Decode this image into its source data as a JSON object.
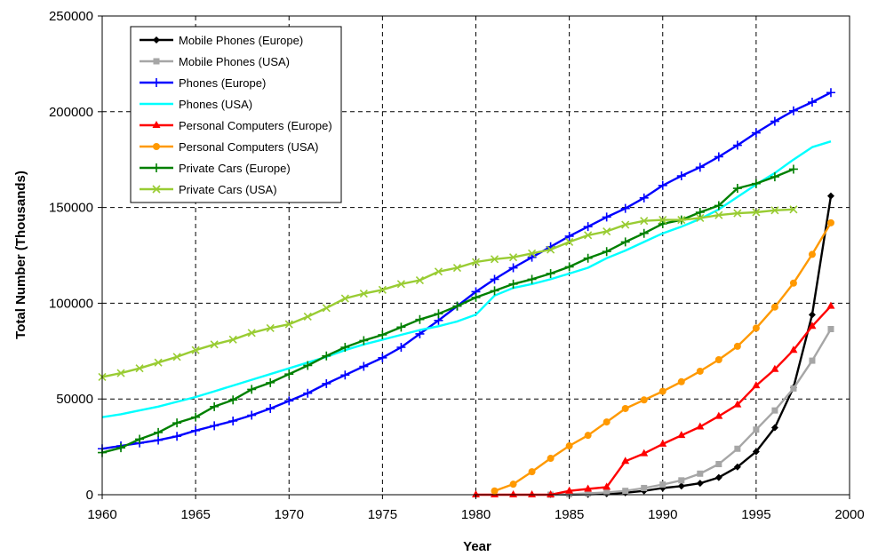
{
  "chart_data": {
    "type": "line",
    "title": "",
    "xlabel": "Year",
    "ylabel": "Total Number (Thousands)",
    "xlim": [
      1960,
      2000
    ],
    "ylim": [
      0,
      250000
    ],
    "x_ticks": [
      "1960",
      "1965",
      "1970",
      "1975",
      "1980",
      "1985",
      "1990",
      "1995",
      "2000"
    ],
    "y_ticks": [
      "0",
      "50000",
      "100000",
      "150000",
      "200000",
      "250000"
    ],
    "grid": true,
    "legend_position": "top-left",
    "series": [
      {
        "name": "Mobile Phones (Europe)",
        "color": "#000000",
        "marker": "diamond",
        "x": [
          1984,
          1985,
          1986,
          1987,
          1988,
          1989,
          1990,
          1991,
          1992,
          1993,
          1994,
          1995,
          1996,
          1997,
          1998,
          1999
        ],
        "y": [
          0,
          100,
          200,
          500,
          1000,
          2000,
          3500,
          4500,
          6000,
          9000,
          14500,
          22500,
          35000,
          56000,
          94000,
          156000
        ]
      },
      {
        "name": "Mobile Phones (USA)",
        "color": "#a6a6a6",
        "marker": "square",
        "x": [
          1984,
          1985,
          1986,
          1987,
          1988,
          1989,
          1990,
          1991,
          1992,
          1993,
          1994,
          1995,
          1996,
          1997,
          1998,
          1999
        ],
        "y": [
          0,
          300,
          700,
          1200,
          2000,
          3500,
          5300,
          7500,
          11000,
          16000,
          24000,
          34000,
          44000,
          55500,
          70000,
          86500
        ]
      },
      {
        "name": "Phones (Europe)",
        "color": "#0000ff",
        "marker": "plus",
        "x": [
          1960,
          1961,
          1962,
          1963,
          1964,
          1965,
          1966,
          1967,
          1968,
          1969,
          1970,
          1971,
          1972,
          1973,
          1974,
          1975,
          1976,
          1977,
          1978,
          1979,
          1980,
          1981,
          1982,
          1983,
          1984,
          1985,
          1986,
          1987,
          1988,
          1989,
          1990,
          1991,
          1992,
          1993,
          1994,
          1995,
          1996,
          1997,
          1998,
          1999
        ],
        "y": [
          24000,
          25500,
          27000,
          28500,
          30500,
          33500,
          36000,
          38500,
          41500,
          45000,
          49000,
          53000,
          58000,
          62500,
          67000,
          71500,
          77000,
          84000,
          91000,
          98500,
          106000,
          112500,
          118500,
          124000,
          129500,
          135000,
          140000,
          145000,
          149500,
          155000,
          161500,
          166500,
          171000,
          176500,
          182500,
          189000,
          195000,
          200500,
          205000,
          210000
        ]
      },
      {
        "name": "Phones (USA)",
        "color": "#00ffff",
        "marker": "none",
        "x": [
          1960,
          1961,
          1962,
          1963,
          1964,
          1965,
          1966,
          1967,
          1968,
          1969,
          1970,
          1971,
          1972,
          1973,
          1974,
          1975,
          1976,
          1977,
          1978,
          1979,
          1980,
          1981,
          1982,
          1983,
          1984,
          1985,
          1986,
          1987,
          1988,
          1989,
          1990,
          1991,
          1992,
          1993,
          1994,
          1995,
          1996,
          1997,
          1998,
          1999
        ],
        "y": [
          40500,
          42000,
          44000,
          46000,
          48500,
          51000,
          54000,
          57000,
          60000,
          63000,
          66000,
          69000,
          72000,
          75500,
          78500,
          81000,
          83500,
          86000,
          88000,
          90500,
          94000,
          104000,
          108000,
          110000,
          112500,
          115500,
          118500,
          123500,
          127500,
          132000,
          136500,
          140000,
          144000,
          149000,
          155500,
          162000,
          168000,
          175000,
          181500,
          184500
        ]
      },
      {
        "name": "Personal Computers (Europe)",
        "color": "#ff0000",
        "marker": "triangle",
        "x": [
          1980,
          1981,
          1982,
          1983,
          1984,
          1985,
          1986,
          1987,
          1988,
          1989,
          1990,
          1991,
          1992,
          1993,
          1994,
          1995,
          1996,
          1997,
          1998,
          1999
        ],
        "y": [
          0,
          0,
          0,
          0,
          0,
          2000,
          3000,
          4000,
          17500,
          21500,
          26500,
          31000,
          35500,
          41000,
          47000,
          57000,
          65500,
          75500,
          88000,
          98500
        ]
      },
      {
        "name": "Personal Computers (USA)",
        "color": "#ff9900",
        "marker": "circle",
        "x": [
          1981,
          1982,
          1983,
          1984,
          1985,
          1986,
          1987,
          1988,
          1989,
          1990,
          1991,
          1992,
          1993,
          1994,
          1995,
          1996,
          1997,
          1998,
          1999
        ],
        "y": [
          2000,
          5500,
          12000,
          19000,
          25500,
          31000,
          38000,
          45000,
          49500,
          54000,
          59000,
          64500,
          70500,
          77500,
          87000,
          98000,
          110500,
          125500,
          142000
        ]
      },
      {
        "name": "Private Cars (Europe)",
        "color": "#008000",
        "marker": "plus",
        "x": [
          1960,
          1961,
          1962,
          1963,
          1964,
          1965,
          1966,
          1967,
          1968,
          1969,
          1970,
          1971,
          1972,
          1973,
          1974,
          1975,
          1976,
          1977,
          1978,
          1979,
          1980,
          1981,
          1982,
          1983,
          1984,
          1985,
          1986,
          1987,
          1988,
          1989,
          1990,
          1991,
          1992,
          1993,
          1994,
          1995,
          1996,
          1997
        ],
        "y": [
          22000,
          24500,
          29000,
          32500,
          37500,
          40500,
          46000,
          49500,
          55000,
          58500,
          63000,
          67500,
          72500,
          77000,
          80500,
          83500,
          87500,
          91500,
          94500,
          98500,
          103000,
          106500,
          110000,
          112500,
          115500,
          119000,
          123500,
          127000,
          132000,
          136500,
          141500,
          143500,
          147500,
          151000,
          160000,
          162500,
          166000,
          170000
        ]
      },
      {
        "name": "Private Cars (USA)",
        "color": "#99cc33",
        "marker": "x",
        "x": [
          1960,
          1961,
          1962,
          1963,
          1964,
          1965,
          1966,
          1967,
          1968,
          1969,
          1970,
          1971,
          1972,
          1973,
          1974,
          1975,
          1976,
          1977,
          1978,
          1979,
          1980,
          1981,
          1982,
          1983,
          1984,
          1985,
          1986,
          1987,
          1988,
          1989,
          1990,
          1991,
          1992,
          1993,
          1994,
          1995,
          1996,
          1997
        ],
        "y": [
          61500,
          63500,
          66000,
          69000,
          72000,
          75500,
          78500,
          81000,
          84500,
          87000,
          89000,
          93000,
          97500,
          102500,
          105000,
          107000,
          110000,
          112000,
          116500,
          118500,
          121500,
          123000,
          124000,
          126000,
          128000,
          132000,
          135500,
          137500,
          141000,
          143000,
          143500,
          143500,
          144500,
          146000,
          147000,
          147500,
          148500,
          149000
        ]
      }
    ]
  }
}
